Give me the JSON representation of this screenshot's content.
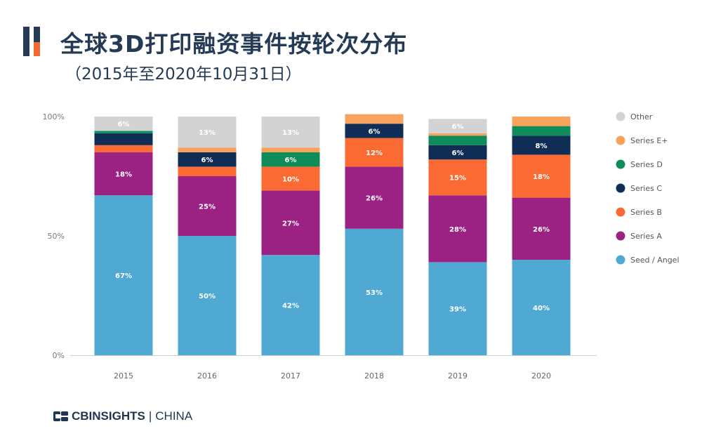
{
  "header": {
    "title": "全球3D打印融资事件按轮次分布",
    "subtitle": "（2015年至2020年10月31日）"
  },
  "footer": {
    "brand": "CBINSIGHTS",
    "separator": "|",
    "region": "CHINA"
  },
  "colors": {
    "title": "#253a55",
    "accent_bar_dark": "#253a55",
    "accent_bar_orange": "#f26b34"
  },
  "chart_data": {
    "type": "bar",
    "stacked": true,
    "categories": [
      "2015",
      "2016",
      "2017",
      "2018",
      "2019",
      "2020"
    ],
    "y_ticks": [
      "0%",
      "50%",
      "100%"
    ],
    "ylim": [
      0,
      100
    ],
    "grid": false,
    "legend_position": "right",
    "series": [
      {
        "name": "Seed / Angel",
        "color": "#4fa9d2",
        "values": [
          67,
          50,
          42,
          53,
          39,
          40
        ],
        "labels": [
          "67%",
          "50%",
          "42%",
          "53%",
          "39%",
          "40%"
        ]
      },
      {
        "name": "Series A",
        "color": "#9b2282",
        "values": [
          18,
          25,
          27,
          26,
          28,
          26
        ],
        "labels": [
          "18%",
          "25%",
          "27%",
          "26%",
          "28%",
          "26%"
        ]
      },
      {
        "name": "Series B",
        "color": "#fa6a32",
        "values": [
          3,
          4,
          10,
          12,
          15,
          18
        ],
        "labels": [
          "",
          "",
          "10%",
          "12%",
          "15%",
          "18%"
        ]
      },
      {
        "name": "Series C",
        "color": "#0f2d55",
        "values": [
          5,
          6,
          0,
          6,
          6,
          8
        ],
        "labels": [
          "",
          "6%",
          "",
          "6%",
          "6%",
          "8%"
        ]
      },
      {
        "name": "Series D",
        "color": "#0e8c5a",
        "values": [
          1,
          0,
          6,
          0,
          4,
          4
        ],
        "labels": [
          "",
          "",
          "6%",
          "",
          "",
          ""
        ]
      },
      {
        "name": "Series E+",
        "color": "#f9a25c",
        "values": [
          0,
          2,
          2,
          4,
          1,
          4
        ],
        "labels": [
          "",
          "",
          "",
          "",
          "",
          ""
        ]
      },
      {
        "name": "Other",
        "color": "#d4d3d3",
        "values": [
          6,
          13,
          13,
          0,
          6,
          0
        ],
        "labels": [
          "6%",
          "13%",
          "13%",
          "",
          "6%",
          ""
        ]
      }
    ]
  }
}
